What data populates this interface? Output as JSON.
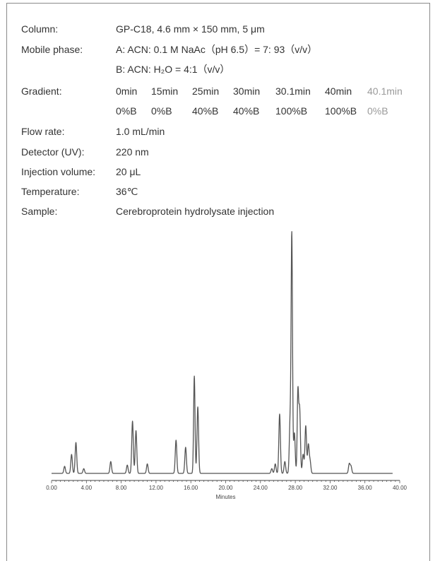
{
  "conditions": {
    "column": {
      "label": "Column:",
      "value": "GP-C18, 4.6 mm × 150 mm, 5 μm"
    },
    "mobile_phase": {
      "label": "Mobile phase:",
      "value_a": "A: ACN: 0.1 M NaAc（pH 6.5）= 7: 93（v/v）",
      "value_b": "B: ACN: H₂O = 4:1（v/v）"
    },
    "gradient": {
      "label": "Gradient:",
      "times": [
        "0min",
        "15min",
        "25min",
        "30min",
        "30.1min",
        "40min",
        "40.1min"
      ],
      "percents": [
        "0%B",
        "0%B",
        "40%B",
        "40%B",
        "100%B",
        "100%B",
        "0%B"
      ]
    },
    "flow_rate": {
      "label": "Flow rate:",
      "value": "1.0 mL/min"
    },
    "detector": {
      "label": "Detector (UV):",
      "value": "220 nm"
    },
    "injection_volume": {
      "label": "Injection volume:",
      "value": "20 μL"
    },
    "temperature": {
      "label": "Temperature:",
      "value": "36℃"
    },
    "sample": {
      "label": "Sample:",
      "value": "Cerebroprotein hydrolysate injection"
    }
  },
  "chart_data": {
    "type": "line",
    "title": "",
    "xlabel": "Minutes",
    "ylabel": "",
    "xlim": [
      0,
      40
    ],
    "x_ticks": [
      "0.00",
      "4.00",
      "8.00",
      "12.00",
      "16.00",
      "20.00",
      "24.00",
      "28.00",
      "32.00",
      "36.00",
      "40.00"
    ],
    "grid": false,
    "line_color": "#555555",
    "peaks": [
      {
        "rt": 1.5,
        "height": 0.03
      },
      {
        "rt": 2.3,
        "height": 0.08
      },
      {
        "rt": 2.8,
        "height": 0.13
      },
      {
        "rt": 3.7,
        "height": 0.02
      },
      {
        "rt": 6.8,
        "height": 0.05
      },
      {
        "rt": 8.7,
        "height": 0.035
      },
      {
        "rt": 9.3,
        "height": 0.22
      },
      {
        "rt": 9.7,
        "height": 0.18
      },
      {
        "rt": 11.0,
        "height": 0.04
      },
      {
        "rt": 14.3,
        "height": 0.14
      },
      {
        "rt": 15.4,
        "height": 0.11
      },
      {
        "rt": 16.4,
        "height": 0.41
      },
      {
        "rt": 16.8,
        "height": 0.28
      },
      {
        "rt": 25.3,
        "height": 0.02
      },
      {
        "rt": 25.7,
        "height": 0.04
      },
      {
        "rt": 26.2,
        "height": 0.25
      },
      {
        "rt": 26.8,
        "height": 0.05
      },
      {
        "rt": 27.4,
        "height": 0.21
      },
      {
        "rt": 27.6,
        "height": 1.0
      },
      {
        "rt": 27.9,
        "height": 0.17
      },
      {
        "rt": 28.3,
        "height": 0.34
      },
      {
        "rt": 28.5,
        "height": 0.27
      },
      {
        "rt": 28.9,
        "height": 0.08
      },
      {
        "rt": 29.2,
        "height": 0.2
      },
      {
        "rt": 29.5,
        "height": 0.12
      },
      {
        "rt": 29.7,
        "height": 0.05
      },
      {
        "rt": 34.2,
        "height": 0.04
      },
      {
        "rt": 34.4,
        "height": 0.03
      }
    ]
  }
}
